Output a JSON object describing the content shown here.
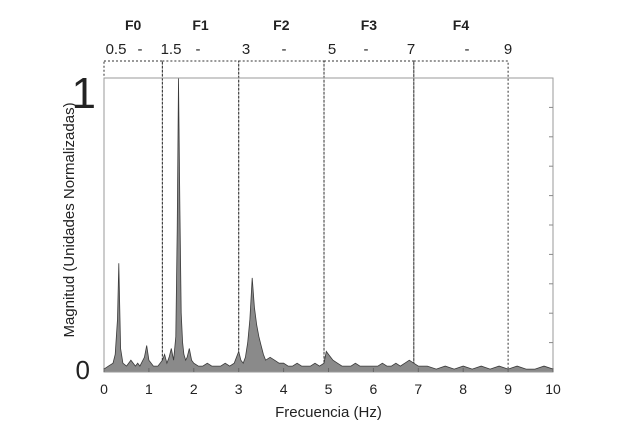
{
  "chart_data": {
    "type": "line",
    "title": "",
    "xlabel": "Frecuencia (Hz)",
    "ylabel": "Magnitud (Unidades Normalizadas)",
    "xlim": [
      0,
      10
    ],
    "ylim": [
      0,
      1
    ],
    "x_ticks": [
      "0",
      "1",
      "2",
      "3",
      "4",
      "5",
      "6",
      "7",
      "8",
      "9",
      "10"
    ],
    "y_ticks": [
      "0",
      "1"
    ],
    "grid": false,
    "bands": [
      {
        "name": "F0",
        "start": 0,
        "end": 1.3
      },
      {
        "name": "F1",
        "start": 1.3,
        "end": 3
      },
      {
        "name": "F2",
        "start": 3,
        "end": 4.9
      },
      {
        "name": "F3",
        "start": 4.9,
        "end": 6.9
      },
      {
        "name": "F4",
        "start": 6.9,
        "end": 9
      }
    ],
    "band_range_labels": [
      "0.5",
      "-",
      "1.5",
      "-",
      "3",
      "-",
      "5",
      "-",
      "7",
      "-",
      "9"
    ],
    "series": [
      {
        "x": [
          0,
          0.1,
          0.2,
          0.25,
          0.3,
          0.33,
          0.37,
          0.42,
          0.5,
          0.6,
          0.7,
          0.75,
          0.8,
          0.9,
          0.95,
          1.0,
          1.1,
          1.2,
          1.3,
          1.35,
          1.4,
          1.45,
          1.5,
          1.55,
          1.6,
          1.63,
          1.66,
          1.69,
          1.72,
          1.75,
          1.78,
          1.82,
          1.85,
          1.9,
          1.95,
          2.0,
          2.1,
          2.2,
          2.3,
          2.4,
          2.5,
          2.6,
          2.7,
          2.8,
          2.9,
          3.0,
          3.05,
          3.1,
          3.15,
          3.2,
          3.25,
          3.3,
          3.35,
          3.4,
          3.45,
          3.5,
          3.55,
          3.6,
          3.7,
          3.8,
          3.9,
          4.0,
          4.1,
          4.2,
          4.3,
          4.4,
          4.5,
          4.6,
          4.7,
          4.8,
          4.9,
          4.95,
          5.0,
          5.05,
          5.1,
          5.2,
          5.3,
          5.4,
          5.5,
          5.6,
          5.7,
          5.8,
          5.9,
          6.0,
          6.1,
          6.2,
          6.3,
          6.4,
          6.5,
          6.6,
          6.7,
          6.8,
          6.9,
          7.0,
          7.2,
          7.4,
          7.6,
          7.8,
          8.0,
          8.2,
          8.4,
          8.6,
          8.8,
          9.0,
          9.2,
          9.4,
          9.6,
          9.8,
          10.0
        ],
        "values": [
          0.01,
          0.02,
          0.03,
          0.06,
          0.18,
          0.37,
          0.08,
          0.03,
          0.02,
          0.04,
          0.02,
          0.03,
          0.02,
          0.05,
          0.09,
          0.04,
          0.02,
          0.02,
          0.04,
          0.06,
          0.03,
          0.05,
          0.08,
          0.04,
          0.12,
          0.48,
          1.0,
          0.55,
          0.2,
          0.1,
          0.06,
          0.04,
          0.05,
          0.08,
          0.04,
          0.03,
          0.02,
          0.02,
          0.03,
          0.02,
          0.02,
          0.02,
          0.03,
          0.02,
          0.03,
          0.07,
          0.04,
          0.03,
          0.05,
          0.1,
          0.18,
          0.32,
          0.22,
          0.16,
          0.12,
          0.09,
          0.06,
          0.04,
          0.05,
          0.04,
          0.03,
          0.03,
          0.02,
          0.02,
          0.03,
          0.02,
          0.02,
          0.02,
          0.03,
          0.02,
          0.03,
          0.07,
          0.06,
          0.05,
          0.04,
          0.03,
          0.02,
          0.02,
          0.02,
          0.03,
          0.02,
          0.02,
          0.02,
          0.02,
          0.02,
          0.03,
          0.02,
          0.02,
          0.03,
          0.02,
          0.03,
          0.04,
          0.03,
          0.02,
          0.02,
          0.01,
          0.02,
          0.01,
          0.02,
          0.01,
          0.02,
          0.01,
          0.02,
          0.01,
          0.02,
          0.01,
          0.01,
          0.02,
          0.01
        ]
      }
    ]
  }
}
